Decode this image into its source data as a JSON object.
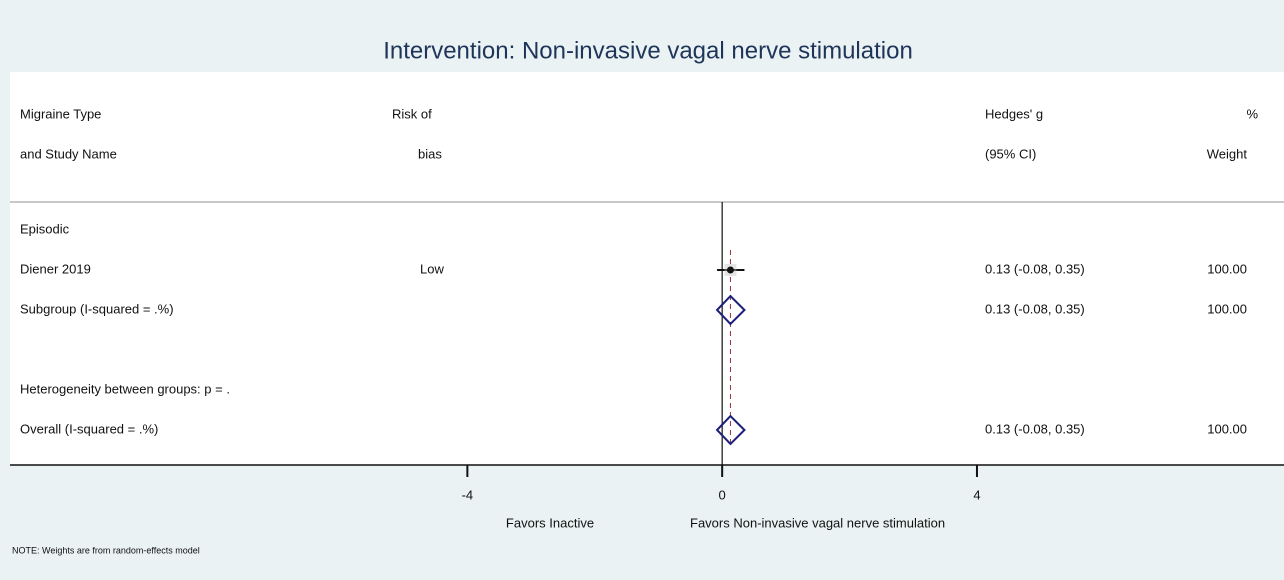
{
  "chart_data": {
    "type": "forest",
    "title": "Intervention: Non-invasive vagal nerve stimulation",
    "columns": {
      "study": [
        "Migraine Type",
        "and Study Name"
      ],
      "bias": [
        "Risk of",
        "bias"
      ],
      "effect": [
        "Hedges' g",
        "(95% CI)"
      ],
      "weight": [
        "%",
        "Weight"
      ]
    },
    "rows": [
      {
        "label": "Episodic"
      },
      {
        "label": "Diener 2019",
        "bias": "Low",
        "estimate": 0.13,
        "ci": [
          -0.08,
          0.35
        ],
        "estimate_label": "0.13 (-0.08, 0.35)",
        "weight": 100,
        "weight_label": "100.00",
        "marker": "box"
      },
      {
        "label": "Subgroup (I-squared = .%)",
        "estimate": 0.13,
        "ci": [
          -0.08,
          0.35
        ],
        "estimate_label": "0.13 (-0.08, 0.35)",
        "weight": 100,
        "weight_label": "100.00",
        "marker": "diamond"
      },
      {
        "label": "Heterogeneity between groups: p = ."
      },
      {
        "label": "Overall (I-squared = .%)",
        "estimate": 0.13,
        "ci": [
          -0.08,
          0.35
        ],
        "estimate_label": "0.13 (-0.08, 0.35)",
        "weight": 100,
        "weight_label": "100.00",
        "marker": "diamond"
      }
    ],
    "xlim": [
      -11.18,
      8.82
    ],
    "xticks": [
      -4,
      0,
      4
    ],
    "xlabel_left": "Favors Inactive",
    "xlabel_right": "Favors Non-invasive vagal nerve stimulation",
    "note": "NOTE: Weights are from random-effects model"
  }
}
